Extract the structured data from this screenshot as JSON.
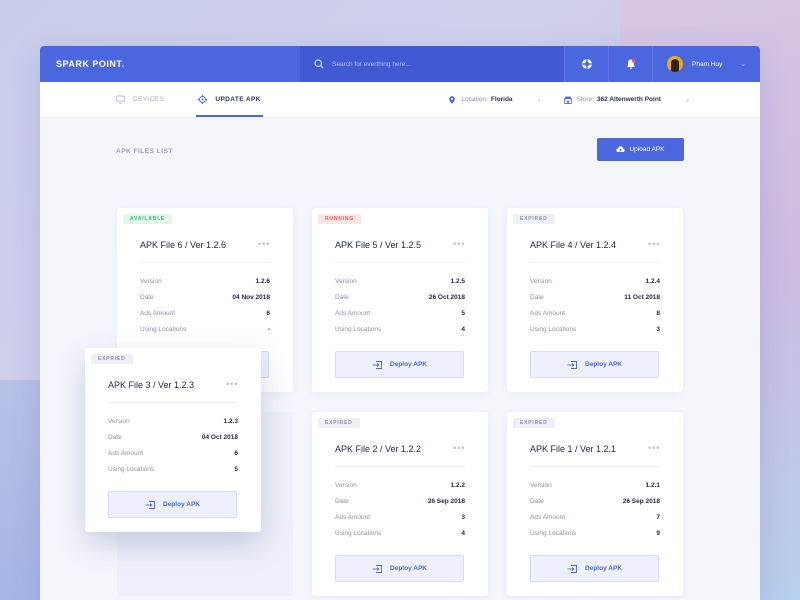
{
  "app": {
    "brand": "SPARK POINT.",
    "search": {
      "placeholder": "Search for everthing here..."
    },
    "user": {
      "name": "Pham Huy"
    },
    "accent": "#4a67e0"
  },
  "subnav": {
    "tabs": [
      {
        "label": "DEVICES",
        "active": false,
        "icon": "monitor-icon"
      },
      {
        "label": "UPDATE APK",
        "active": true,
        "icon": "settings-target-icon"
      }
    ],
    "location": {
      "label": "Location:",
      "value": "Florida"
    },
    "store": {
      "label": "Store:",
      "value": "362 Altenwerth Point"
    }
  },
  "content": {
    "section_title": "APK FILES LIST",
    "upload_label": "Upload APK",
    "row_labels": {
      "version": "Version",
      "date": "Date",
      "ads": "Ads Amount",
      "locations": "Using Locations"
    },
    "deploy_label": "Deploy APK",
    "more_label": "•••",
    "cards": [
      {
        "status": "AVAILABLE",
        "title": "APK File 6 / Ver 1.2.6",
        "version": "1.2.6",
        "date": "04 Nov 2018",
        "ads": "6",
        "locations": "-"
      },
      {
        "status": "RUNNING",
        "title": "APK File 5 / Ver 1.2.5",
        "version": "1.2.5",
        "date": "26 Oct 2018",
        "ads": "5",
        "locations": "4"
      },
      {
        "status": "EXPIRED",
        "title": "APK File 4 / Ver 1.2.4",
        "version": "1.2.4",
        "date": "11 Oct 2018",
        "ads": "8",
        "locations": "3"
      },
      {
        "status": "EXPRIED",
        "title": "APK File 3 / Ver 1.2.3",
        "version": "1.2.3",
        "date": "04 Oct 2018",
        "ads": "6",
        "locations": "5"
      },
      {
        "status": "EXPIRED",
        "title": "APK File 2 / Ver 1.2.2",
        "version": "1.2.2",
        "date": "26 Sep 2018",
        "ads": "3",
        "locations": "4"
      },
      {
        "status": "EXPIRED",
        "title": "APK File 1 / Ver 1.2.1",
        "version": "1.2.1",
        "date": "26 Sep 2018",
        "ads": "7",
        "locations": "9"
      }
    ]
  }
}
